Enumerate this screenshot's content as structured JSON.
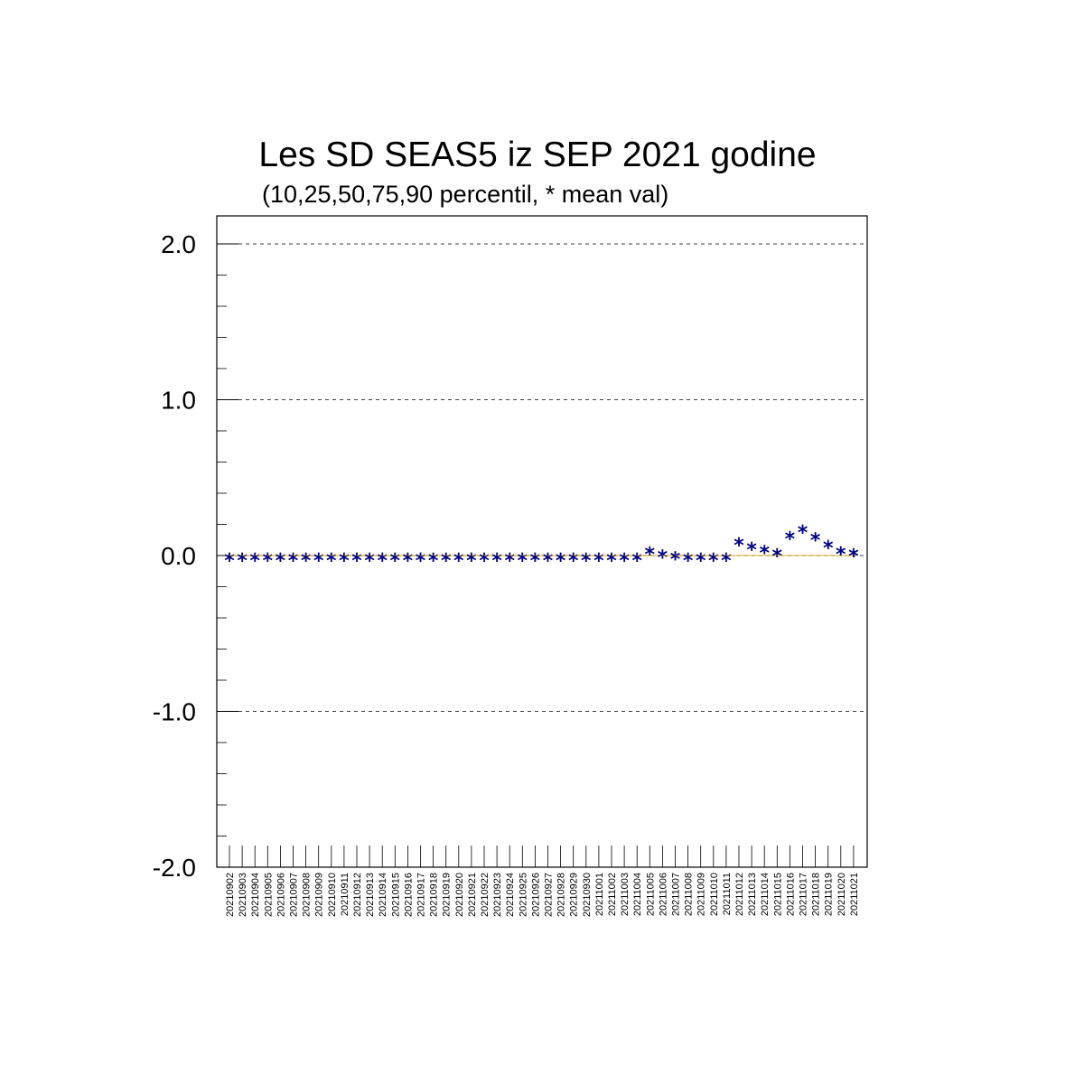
{
  "chart_data": {
    "type": "scatter",
    "title": "Les SD SEAS5 iz SEP 2021 godine",
    "subtitle": "(10,25,50,75,90 percentil, * mean val)",
    "xlabel": "",
    "ylabel": "",
    "ylim": [
      -2.0,
      2.0
    ],
    "y_ticks": [
      "-2.0",
      "-1.0",
      "0.0",
      "1.0",
      "2.0"
    ],
    "grid": "horizontal dashed at major y ticks",
    "marker": "*",
    "marker_color": "#000080",
    "percentile_color": "#cc9900",
    "categories": [
      "20210902",
      "20210903",
      "20210904",
      "20210905",
      "20210906",
      "20210907",
      "20210908",
      "20210909",
      "20210910",
      "20210911",
      "20210912",
      "20210913",
      "20210914",
      "20210915",
      "20210916",
      "20210917",
      "20210918",
      "20210919",
      "20210920",
      "20210921",
      "20210922",
      "20210923",
      "20210924",
      "20210925",
      "20210926",
      "20210927",
      "20210928",
      "20210929",
      "20210930",
      "20211001",
      "20211002",
      "20211003",
      "20211004",
      "20211005",
      "20211006",
      "20211007",
      "20211008",
      "20211009",
      "20211010",
      "20211011",
      "20211012",
      "20211013",
      "20211014",
      "20211015",
      "20211016",
      "20211017",
      "20211018",
      "20211019",
      "20211020",
      "20211021"
    ],
    "series": [
      {
        "values": [
          0,
          0,
          0,
          0,
          0,
          0,
          0,
          0,
          0,
          0,
          0,
          0,
          0,
          0,
          0,
          0,
          0,
          0,
          0,
          0,
          0,
          0,
          0,
          0,
          0,
          0,
          0,
          0,
          0,
          0,
          0,
          0,
          0,
          0.04,
          0.02,
          0.01,
          0,
          0,
          0,
          0,
          0.1,
          0.07,
          0.05,
          0.03,
          0.14,
          0.18,
          0.13,
          0.08,
          0.04,
          0.03
        ]
      }
    ]
  }
}
